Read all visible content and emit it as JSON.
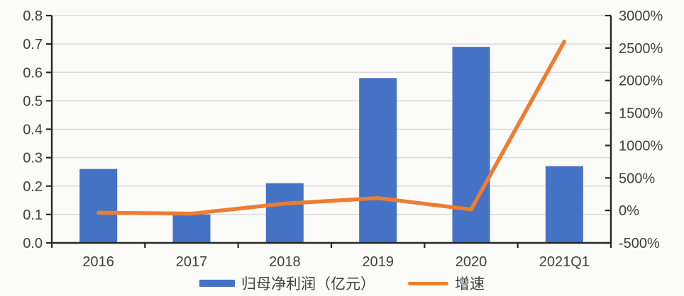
{
  "chart_data": {
    "type": "bar",
    "subtype": "combo-bar-line-dual-axis",
    "title": "",
    "categories": [
      "2016",
      "2017",
      "2018",
      "2019",
      "2020",
      "2021Q1"
    ],
    "series": [
      {
        "name": "归母净利润（亿元）",
        "type": "bar",
        "axis": "left",
        "values": [
          0.26,
          0.1,
          0.21,
          0.58,
          0.69,
          0.27
        ]
      },
      {
        "name": "增速",
        "type": "line",
        "axis": "right",
        "unit": "%",
        "values": [
          -35,
          -50,
          105,
          190,
          15,
          2600
        ]
      }
    ],
    "left_axis": {
      "min": 0.0,
      "max": 0.8,
      "step": 0.1,
      "tick_labels": [
        "0.0",
        "0.1",
        "0.2",
        "0.3",
        "0.4",
        "0.5",
        "0.6",
        "0.7",
        "0.8"
      ]
    },
    "right_axis": {
      "min": -500,
      "max": 3000,
      "step": 500,
      "tick_labels": [
        "-500%",
        "0%",
        "500%",
        "1000%",
        "1500%",
        "2000%",
        "2500%",
        "3000%"
      ]
    },
    "grid": true,
    "legend_position": "bottom",
    "xlabel": "",
    "ylabel": ""
  },
  "legend": {
    "bar_label": "归母净利润（亿元）",
    "line_label": "增速"
  },
  "colors": {
    "bar": "#4472c4",
    "line": "#ed7d31",
    "axis": "#262626",
    "grid": "#d9d9d9",
    "text": "#3f3f3f",
    "background": "#fbfbf9"
  }
}
